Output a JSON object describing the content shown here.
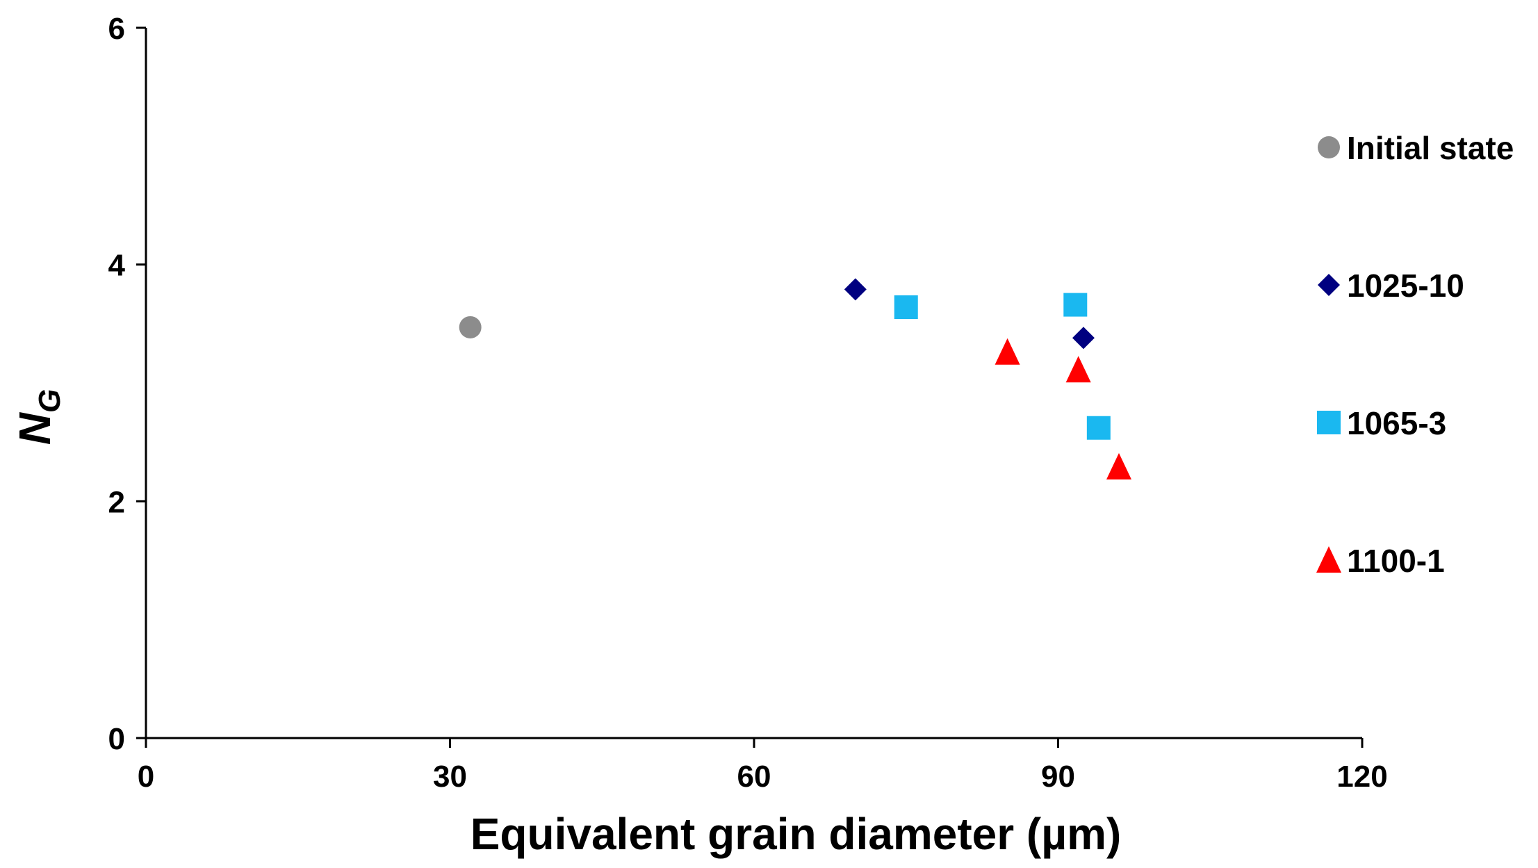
{
  "chart_data": {
    "type": "scatter",
    "title": "",
    "xlabel": "Equivalent grain diameter (µm)",
    "ylabel": {
      "main": "N",
      "subscript": "G"
    },
    "xlim": [
      0,
      120
    ],
    "ylim": [
      0,
      6
    ],
    "x_ticks": [
      0,
      30,
      60,
      90,
      120
    ],
    "y_ticks": [
      0,
      2,
      4,
      6
    ],
    "grid": false,
    "legend_position": "right",
    "series": [
      {
        "name": "Initial state",
        "marker": "circle",
        "color": "#8c8c8c",
        "points": [
          {
            "x": 32.0,
            "y": 3.47
          }
        ]
      },
      {
        "name": "1025-10",
        "marker": "diamond",
        "color": "#000080",
        "points": [
          {
            "x": 70.0,
            "y": 3.79
          },
          {
            "x": 92.5,
            "y": 3.38
          }
        ]
      },
      {
        "name": "1065-3",
        "marker": "square",
        "color": "#1ab8f0",
        "points": [
          {
            "x": 75.0,
            "y": 3.64
          },
          {
            "x": 91.7,
            "y": 3.66
          },
          {
            "x": 94.0,
            "y": 2.62
          }
        ]
      },
      {
        "name": "1100-1",
        "marker": "triangle",
        "color": "#ff0000",
        "points": [
          {
            "x": 85.0,
            "y": 3.26
          },
          {
            "x": 92.0,
            "y": 3.11
          },
          {
            "x": 96.0,
            "y": 2.29
          }
        ]
      }
    ]
  }
}
